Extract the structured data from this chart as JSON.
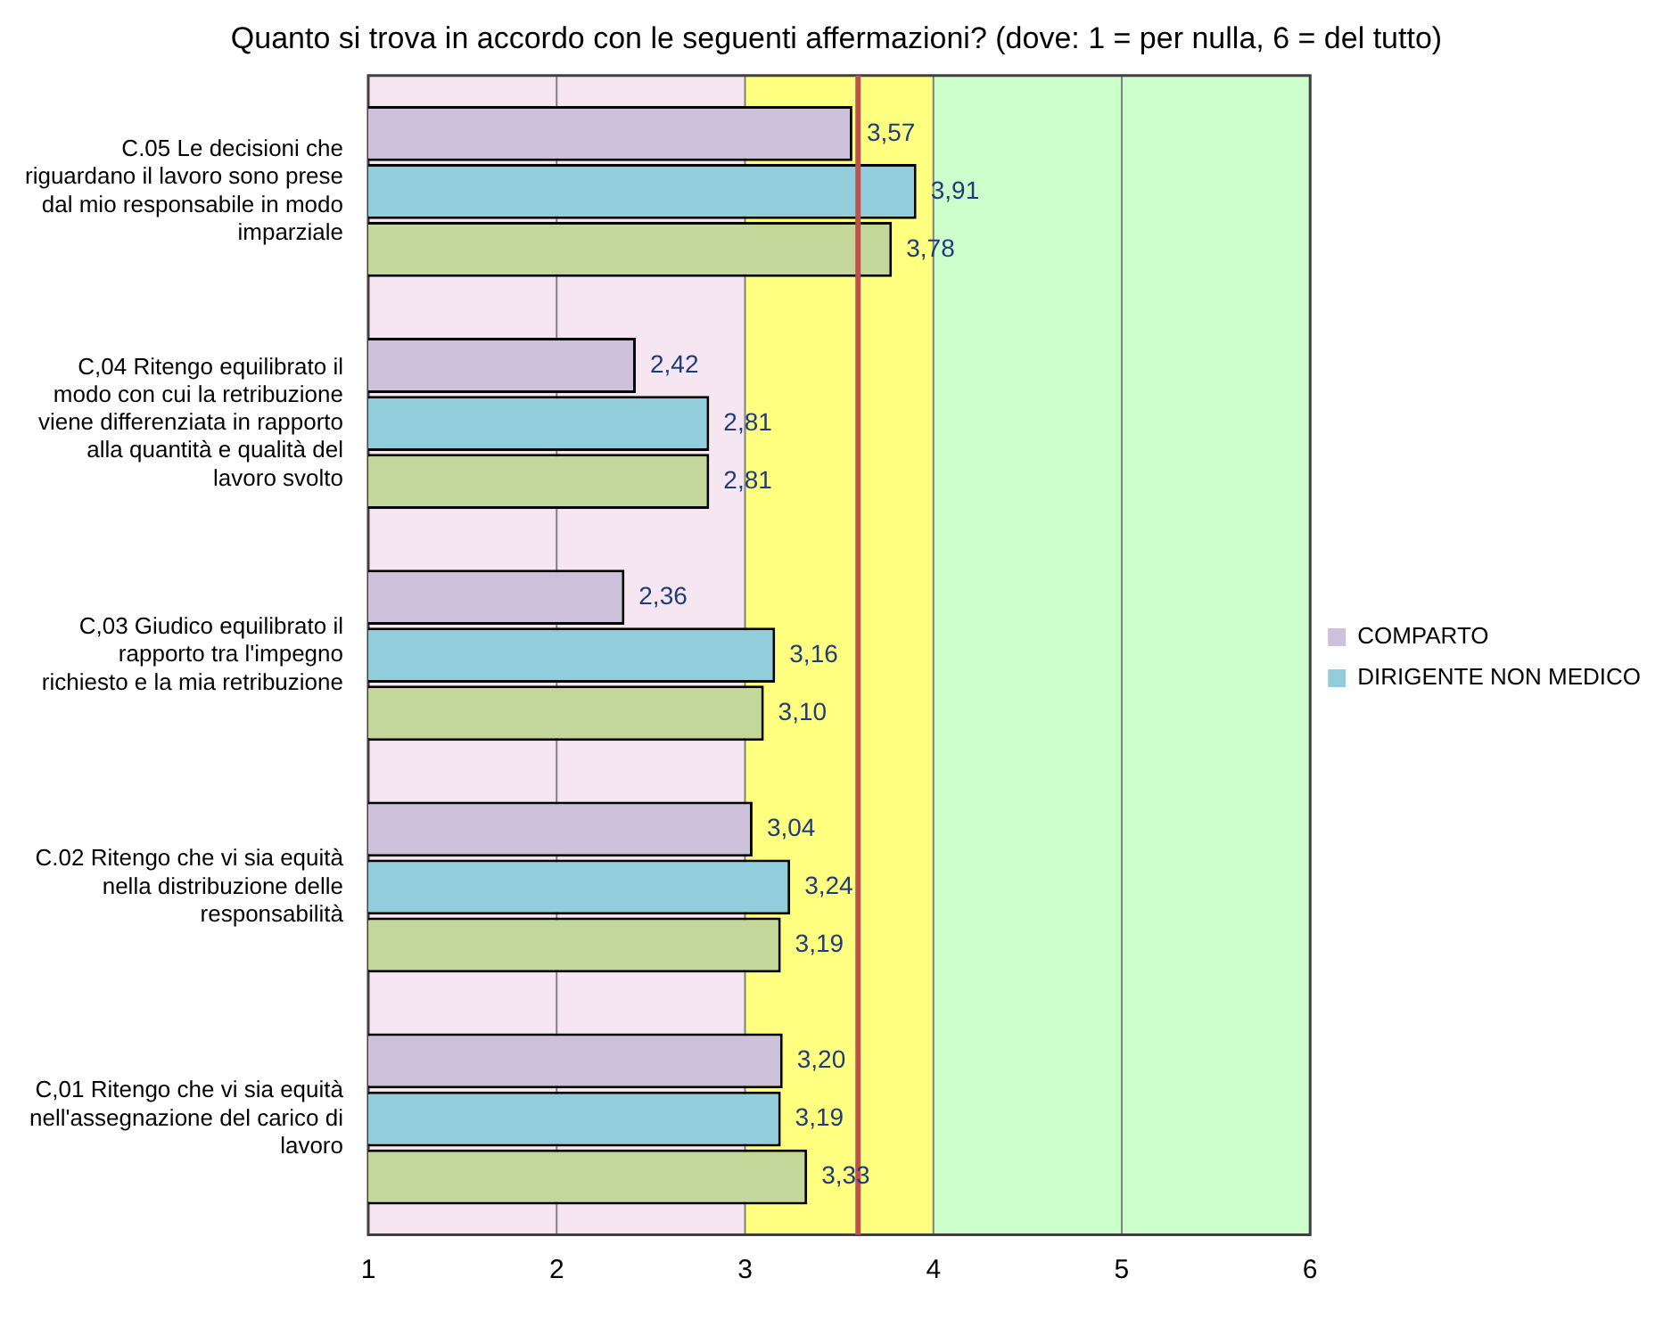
{
  "chart_data": {
    "type": "bar",
    "orientation": "horizontal",
    "title": "Quanto si trova in accordo con le seguenti affermazioni? (dove: 1 = per nulla, 6 = del tutto)",
    "categories": [
      "C.05 Le decisioni che riguardano il lavoro sono prese dal mio responsabile in modo imparziale",
      "C,04 Ritengo equilibrato il modo con cui la retribuzione viene differenziata in rapporto alla quantità e qualità del lavoro svolto",
      "C,03 Giudico equilibrato il rapporto tra l'impegno richiesto e la mia retribuzione",
      "C.02 Ritengo che vi sia equità nella distribuzione delle responsabilità",
      "C,01 Ritengo che vi sia equità nell'assegnazione del carico di lavoro"
    ],
    "series": [
      {
        "name": "COMPARTO",
        "color": "#ccc0da",
        "values": [
          3.57,
          2.42,
          2.36,
          3.04,
          3.2
        ],
        "value_labels": [
          "3,57",
          "2,42",
          "2,36",
          "3,04",
          "3,20"
        ]
      },
      {
        "name": "DIRIGENTE NON MEDICO",
        "color": "#92cddc",
        "values": [
          3.91,
          2.81,
          3.16,
          3.24,
          3.19
        ],
        "value_labels": [
          "3,91",
          "2,81",
          "3,16",
          "3,24",
          "3,19"
        ]
      },
      {
        "color": "#c4d79b",
        "values": [
          3.78,
          2.81,
          3.1,
          3.19,
          3.33
        ],
        "value_labels": [
          "3,78",
          "2,81",
          "3,10",
          "3,19",
          "3,33"
        ]
      }
    ],
    "xlim": [
      1,
      6
    ],
    "xticks": [
      1,
      2,
      3,
      4,
      5,
      6
    ],
    "grid": "x",
    "legend": "right",
    "bands": [
      {
        "axis": "x",
        "from": 1,
        "to": 3,
        "color": "#f6e6f1"
      },
      {
        "axis": "x",
        "from": 3,
        "to": 4,
        "color": "#ffff80"
      },
      {
        "axis": "x",
        "from": 4,
        "to": 6,
        "color": "#ccffcc"
      }
    ],
    "ref_lines": [
      {
        "axis": "x",
        "value": 3.6,
        "color": "#c0504d"
      }
    ]
  }
}
